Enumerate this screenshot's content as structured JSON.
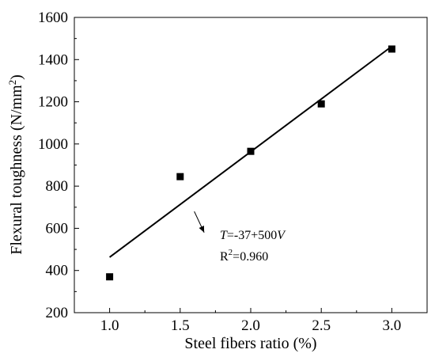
{
  "chart_data": {
    "type": "scatter",
    "title": "",
    "xlabel": "Steel fibers ratio (%)",
    "ylabel": {
      "main": "Flexural toughness  (N/mm",
      "sup": "2",
      "end": ")"
    },
    "xlim": [
      0.75,
      3.25
    ],
    "ylim": [
      200,
      1600
    ],
    "xticks": [
      1.0,
      1.5,
      2.0,
      2.5,
      3.0
    ],
    "xtick_labels": [
      "1.0",
      "1.5",
      "2.0",
      "2.5",
      "3.0"
    ],
    "yticks": [
      200,
      400,
      600,
      800,
      1000,
      1200,
      1400,
      1600
    ],
    "ytick_labels": [
      "200",
      "400",
      "600",
      "800",
      "1000",
      "1200",
      "1400",
      "1600"
    ],
    "grid": false,
    "legend": "none",
    "series": [
      {
        "marker": "square",
        "color": "#000000",
        "x": [
          1.0,
          1.5,
          2.0,
          2.5,
          3.0
        ],
        "y": [
          370,
          845,
          965,
          1190,
          1450
        ]
      }
    ],
    "fit_line": {
      "intercept": -37,
      "slope": 500,
      "x_range": [
        1.0,
        3.0
      ],
      "color": "#000000"
    },
    "annotation": {
      "equation_var": "T",
      "equation_mid": "=-37+500",
      "equation_var2": "V",
      "r2_base": "R",
      "r2_sup": "2",
      "r2_value": "=0.960",
      "arrow_from_x": 1.6,
      "arrow_from_y": 680,
      "arrow_to_x": 1.67,
      "arrow_to_y": 580
    }
  }
}
